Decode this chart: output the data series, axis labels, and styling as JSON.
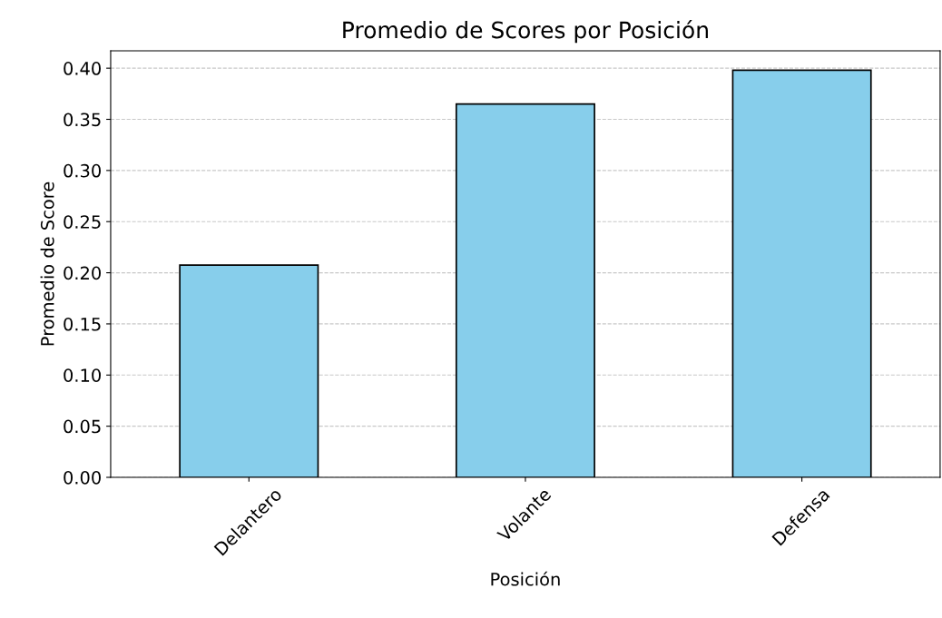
{
  "chart_data": {
    "type": "bar",
    "title": "Promedio de Scores por Posición",
    "xlabel": "Posición",
    "ylabel": "Promedio de Score",
    "categories": [
      "Delantero",
      "Volante",
      "Defensa"
    ],
    "values": [
      0.2075,
      0.365,
      0.398
    ],
    "color": "#87ceeb",
    "ylim": [
      0,
      0.417
    ],
    "yticks": [
      {
        "value": 0,
        "label": "0.00"
      },
      {
        "value": 0.05,
        "label": "0.05"
      },
      {
        "value": 0.1,
        "label": "0.10"
      },
      {
        "value": 0.15,
        "label": "0.15"
      },
      {
        "value": 0.2,
        "label": "0.20"
      },
      {
        "value": 0.25,
        "label": "0.25"
      },
      {
        "value": 0.3,
        "label": "0.30"
      },
      {
        "value": 0.35,
        "label": "0.35"
      },
      {
        "value": 0.4,
        "label": "0.40"
      }
    ],
    "grid": "y",
    "line_style": "dashed",
    "legend": false
  }
}
